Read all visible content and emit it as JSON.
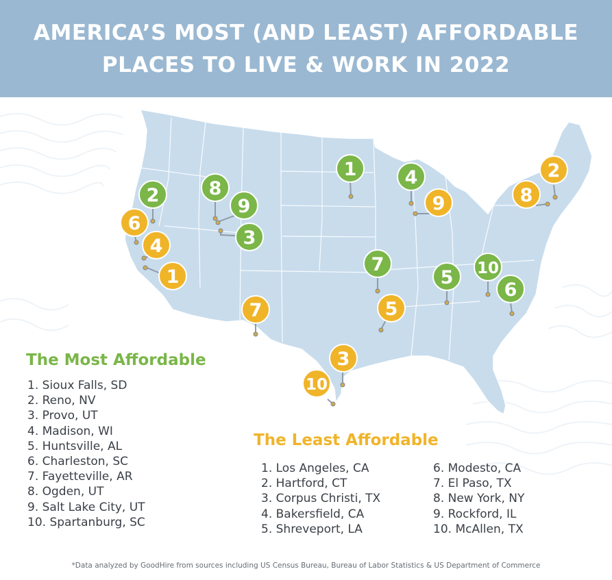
{
  "title": {
    "line1": "AMERICA’S MOST (AND LEAST) AFFORDABLE",
    "line2": "PLACES TO LIVE & WORK IN 2022"
  },
  "colors": {
    "header": "#9ab8d1",
    "map": "#c8dcec",
    "most": "#7ab648",
    "least": "#f0b429",
    "text": "#3a3f46"
  },
  "most_affordable": {
    "heading": "The Most Affordable",
    "items": [
      {
        "rank": "1",
        "label": "1. Sioux Falls, SD"
      },
      {
        "rank": "2",
        "label": "2. Reno, NV"
      },
      {
        "rank": "3",
        "label": "3. Provo, UT"
      },
      {
        "rank": "4",
        "label": "4. Madison, WI"
      },
      {
        "rank": "5",
        "label": "5. Huntsville, AL"
      },
      {
        "rank": "6",
        "label": "6. Charleston, SC"
      },
      {
        "rank": "7",
        "label": "7. Fayetteville, AR"
      },
      {
        "rank": "8",
        "label": "8. Ogden, UT"
      },
      {
        "rank": "9",
        "label": "9. Salt Lake City, UT"
      },
      {
        "rank": "10",
        "label": "10. Spartanburg, SC"
      }
    ]
  },
  "least_affordable": {
    "heading": "The Least Affordable",
    "items": [
      {
        "rank": "1",
        "label": "1. Los Angeles, CA"
      },
      {
        "rank": "2",
        "label": "2. Hartford, CT"
      },
      {
        "rank": "3",
        "label": "3. Corpus Christi, TX"
      },
      {
        "rank": "4",
        "label": "4. Bakersfield, CA"
      },
      {
        "rank": "5",
        "label": "5. Shreveport, LA"
      },
      {
        "rank": "6",
        "label": "6. Modesto, CA"
      },
      {
        "rank": "7",
        "label": "7. El Paso, TX"
      },
      {
        "rank": "8",
        "label": "8. New York, NY"
      },
      {
        "rank": "9",
        "label": "9. Rockford, IL"
      },
      {
        "rank": "10",
        "label": "10. McAllen, TX"
      }
    ]
  },
  "footnote": "*Data analyzed by GoodHire from sources including US Census Bureau, Bureau of Labor Statistics & US Department of Commerce"
}
